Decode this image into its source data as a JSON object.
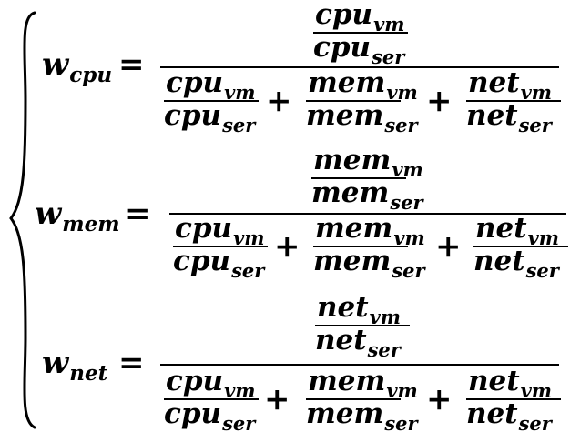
{
  "equations": [
    {
      "lhs": {
        "base": "w",
        "sub": "cpu"
      },
      "equals": "=",
      "numerator": {
        "top": {
          "base": "cpu",
          "sub": "vm"
        },
        "bottom": {
          "base": "cpu",
          "sub": "ser"
        }
      },
      "denominator": [
        {
          "top": {
            "base": "cpu",
            "sub": "vm"
          },
          "bottom": {
            "base": "cpu",
            "sub": "ser"
          }
        },
        {
          "top": {
            "base": "mem",
            "sub": "vm"
          },
          "bottom": {
            "base": "mem",
            "sub": "ser"
          }
        },
        {
          "top": {
            "base": "net",
            "sub": "vm"
          },
          "bottom": {
            "base": "net",
            "sub": "ser"
          }
        }
      ],
      "plus": "+"
    },
    {
      "lhs": {
        "base": "w",
        "sub": "mem"
      },
      "equals": "=",
      "numerator": {
        "top": {
          "base": "mem",
          "sub": "vm"
        },
        "bottom": {
          "base": "mem",
          "sub": "ser"
        }
      },
      "denominator": [
        {
          "top": {
            "base": "cpu",
            "sub": "vm"
          },
          "bottom": {
            "base": "cpu",
            "sub": "ser"
          }
        },
        {
          "top": {
            "base": "mem",
            "sub": "vm"
          },
          "bottom": {
            "base": "mem",
            "sub": "ser"
          }
        },
        {
          "top": {
            "base": "net",
            "sub": "vm"
          },
          "bottom": {
            "base": "net",
            "sub": "ser"
          }
        }
      ],
      "plus": "+"
    },
    {
      "lhs": {
        "base": "w",
        "sub": "net"
      },
      "equals": "=",
      "numerator": {
        "top": {
          "base": "net",
          "sub": "vm"
        },
        "bottom": {
          "base": "net",
          "sub": "ser"
        }
      },
      "denominator": [
        {
          "top": {
            "base": "cpu",
            "sub": "vm"
          },
          "bottom": {
            "base": "cpu",
            "sub": "ser"
          }
        },
        {
          "top": {
            "base": "mem",
            "sub": "vm"
          },
          "bottom": {
            "base": "mem",
            "sub": "ser"
          }
        },
        {
          "top": {
            "base": "net",
            "sub": "vm"
          },
          "bottom": {
            "base": "net",
            "sub": "ser"
          }
        }
      ],
      "plus": "+"
    }
  ]
}
